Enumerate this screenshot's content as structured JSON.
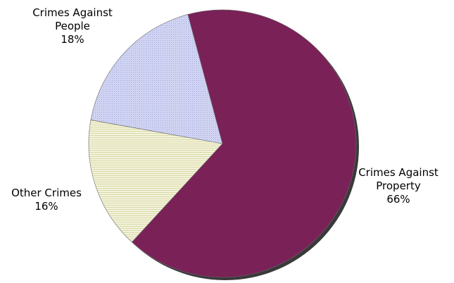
{
  "chart_data": {
    "type": "pie",
    "title": "",
    "slices": [
      {
        "label_lines": [
          "Crimes Against",
          "Property"
        ],
        "value": 66,
        "value_label": "66%",
        "color": "#7a2158",
        "pattern": "solid"
      },
      {
        "label_lines": [
          "Other Crimes"
        ],
        "value": 16,
        "value_label": "16%",
        "color": "#efefcf",
        "pattern": "horizontal-lines"
      },
      {
        "label_lines": [
          "Crimes Against",
          "People"
        ],
        "value": 18,
        "value_label": "18%",
        "color": "#c9cdf0",
        "pattern": "dots"
      }
    ],
    "legend": "none",
    "style": "3d-shadow"
  }
}
